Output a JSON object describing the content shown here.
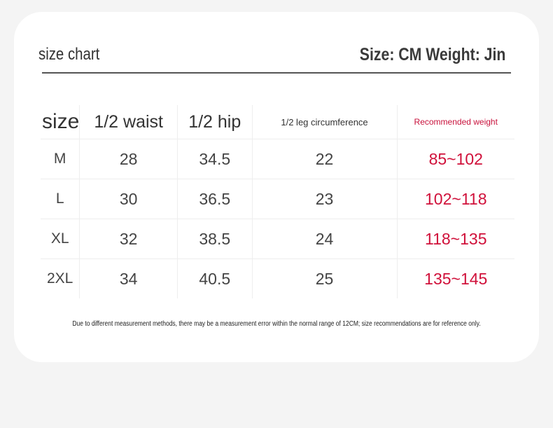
{
  "header": {
    "title": "size chart",
    "units": "Size: CM Weight: Jin"
  },
  "table": {
    "columns": [
      "size",
      "1/2 waist",
      "1/2 hip",
      "1/2 leg circumference",
      "Recommended weight"
    ],
    "rows": [
      [
        "M",
        "28",
        "34.5",
        "22",
        "85~102"
      ],
      [
        "L",
        "30",
        "36.5",
        "23",
        "102~118"
      ],
      [
        "XL",
        "32",
        "38.5",
        "24",
        "118~135"
      ],
      [
        "2XL",
        "34",
        "40.5",
        "25",
        "135~145"
      ]
    ]
  },
  "note": "Due to different measurement methods, there may be a measurement error within the normal range of 12CM; size recommendations are for reference only."
}
